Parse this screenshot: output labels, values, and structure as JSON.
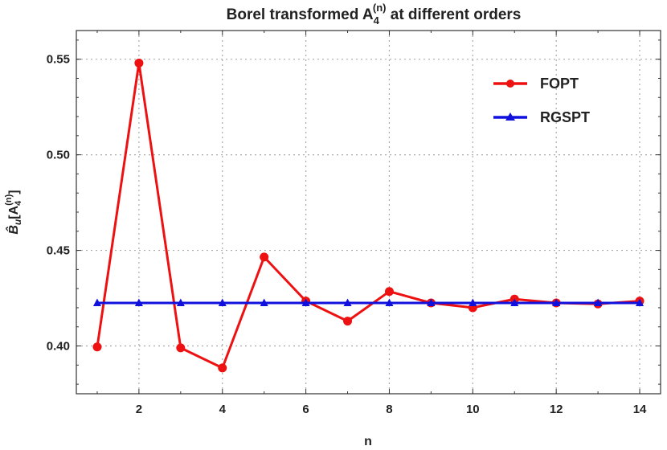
{
  "chart_data": {
    "type": "line",
    "title": "Borel transformed A",
    "title_sub": "4",
    "title_sup": "(n)",
    "title_rest": " at different orders",
    "xlabel": "n",
    "ylabel": "B̂",
    "ylabel_sub": "u",
    "ylabel_rest": "[A",
    "ylabel_rest_sub": "4",
    "ylabel_rest_sup": "(n)",
    "ylabel_close": "]",
    "xlim": [
      0.5,
      14.5
    ],
    "ylim": [
      0.375,
      0.565
    ],
    "x_ticks": [
      2,
      4,
      6,
      8,
      10,
      12,
      14
    ],
    "y_ticks": [
      0.4,
      0.45,
      0.5,
      0.55
    ],
    "y_tick_labels": [
      "0.40",
      "0.45",
      "0.50",
      "0.55"
    ],
    "grid": true,
    "legend_position": "top-right",
    "series": [
      {
        "name": "FOPT",
        "color": "#ee1111",
        "marker": "circle",
        "x": [
          1,
          2,
          3,
          4,
          5,
          6,
          7,
          8,
          9,
          10,
          11,
          12,
          13,
          14
        ],
        "values": [
          0.3995,
          0.548,
          0.399,
          0.3885,
          0.4465,
          0.4235,
          0.413,
          0.4285,
          0.4225,
          0.42,
          0.4245,
          0.4225,
          0.422,
          0.4235
        ]
      },
      {
        "name": "RGSPT",
        "color": "#1111dd",
        "marker": "triangle",
        "x": [
          1,
          2,
          3,
          4,
          5,
          6,
          7,
          8,
          9,
          10,
          11,
          12,
          13,
          14
        ],
        "values": [
          0.4225,
          0.4225,
          0.4225,
          0.4225,
          0.4225,
          0.4225,
          0.4225,
          0.4225,
          0.4225,
          0.4225,
          0.4225,
          0.4225,
          0.4225,
          0.4225
        ]
      }
    ]
  }
}
